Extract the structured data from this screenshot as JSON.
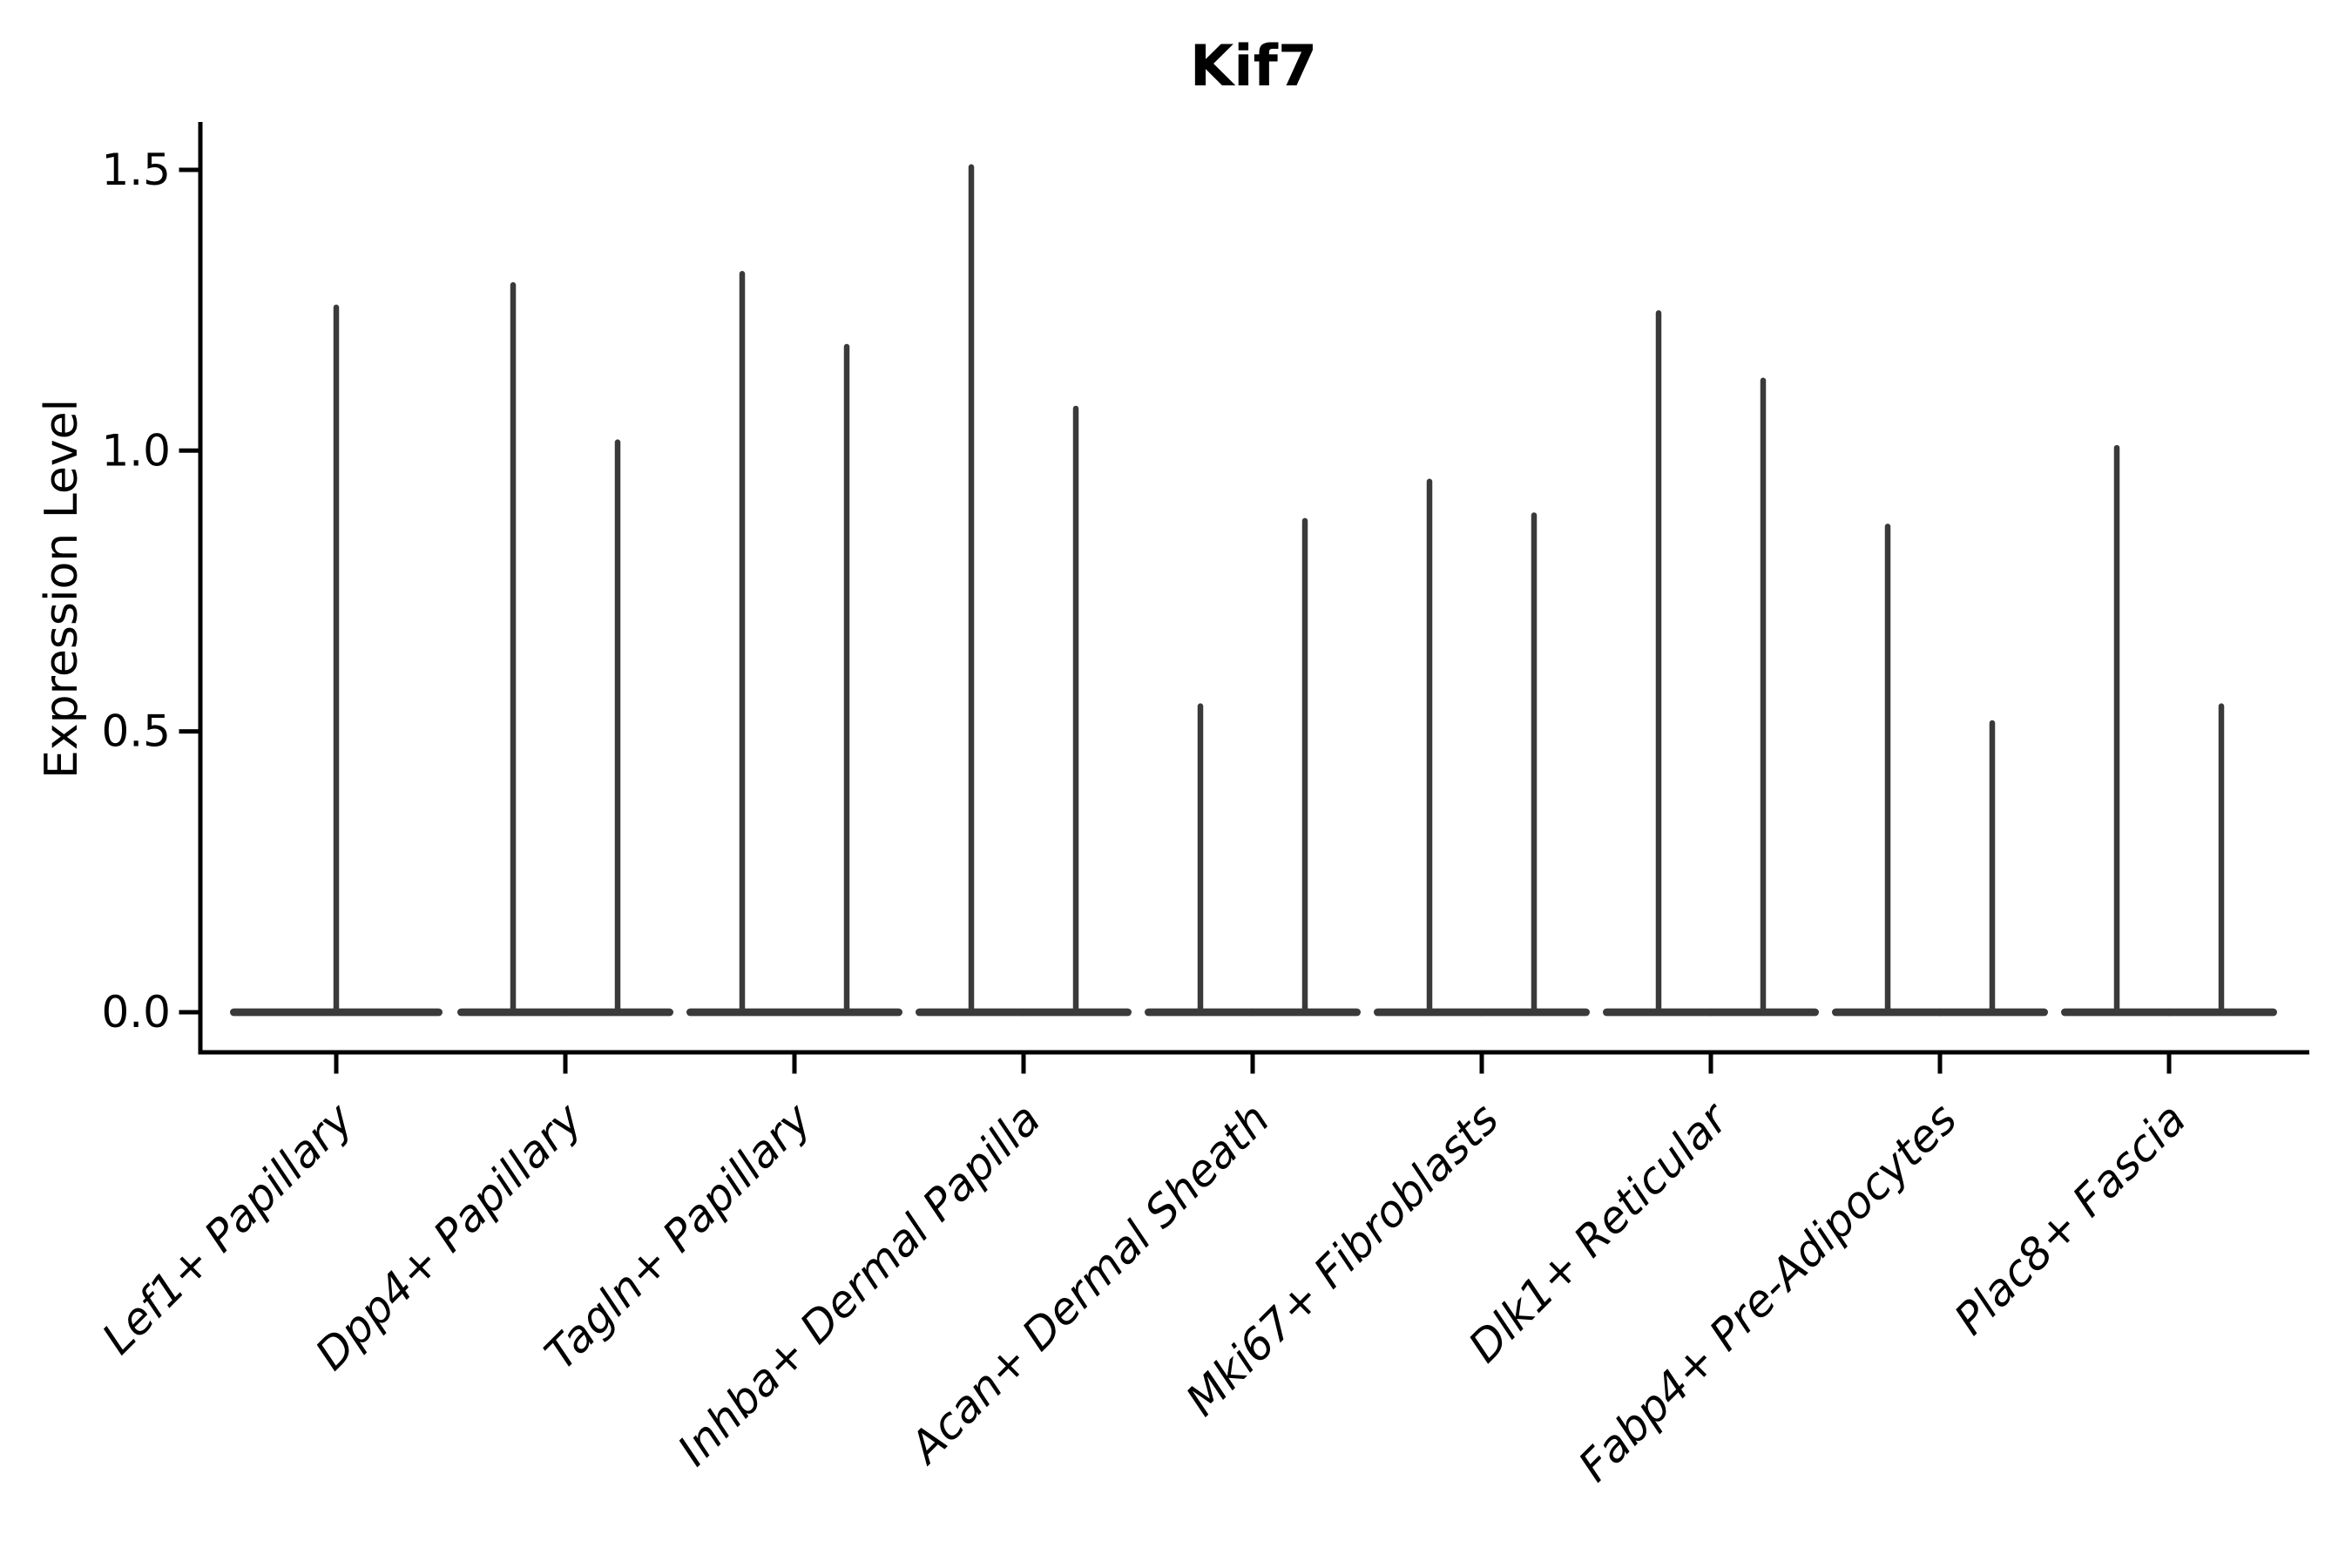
{
  "page": {
    "background": "#ffffff"
  },
  "chart_data": {
    "type": "violin",
    "title": "Kif7",
    "ylabel": "Expression Level",
    "xlabel": "",
    "grid": false,
    "legend": "none",
    "axis_color": "#000000",
    "violin_color": "#3a3a3a",
    "baseline_value": 0.0,
    "ylim": [
      -0.075,
      1.585
    ],
    "yticks": [
      {
        "label": "0.0",
        "value": 0.0
      },
      {
        "label": "0.5",
        "value": 0.5
      },
      {
        "label": "1.0",
        "value": 1.0
      },
      {
        "label": "1.5",
        "value": 1.5
      }
    ],
    "categories": [
      "Lef1+ Papillary",
      "Dpp4+ Papillary",
      "Tagln+ Papillary",
      "Inhba+ Dermal Papilla",
      "Acan+ Dermal Sheath",
      "Mki67+ Fibroblasts",
      "Dlk1+ Reticular",
      "Fabp4+ Pre-Adipocytes",
      "Plac8+ Fascia"
    ],
    "groups": [
      {
        "label": "Lef1+ Papillary",
        "violin_maxima": [
          1.26
        ]
      },
      {
        "label": "Dpp4+ Papillary",
        "violin_maxima": [
          1.3,
          1.02
        ]
      },
      {
        "label": "Tagln+ Papillary",
        "violin_maxima": [
          1.32,
          1.19
        ]
      },
      {
        "label": "Inhba+ Dermal Papilla",
        "violin_maxima": [
          1.51,
          1.08
        ]
      },
      {
        "label": "Acan+ Dermal Sheath",
        "violin_maxima": [
          0.55,
          0.88
        ]
      },
      {
        "label": "Mki67+ Fibroblasts",
        "violin_maxima": [
          0.95,
          0.89
        ]
      },
      {
        "label": "Dlk1+ Reticular",
        "violin_maxima": [
          1.25,
          1.13
        ]
      },
      {
        "label": "Fabp4+ Pre-Adipocytes",
        "violin_maxima": [
          0.87,
          0.52
        ]
      },
      {
        "label": "Plac8+ Fascia",
        "violin_maxima": [
          1.01,
          0.55
        ]
      }
    ]
  }
}
